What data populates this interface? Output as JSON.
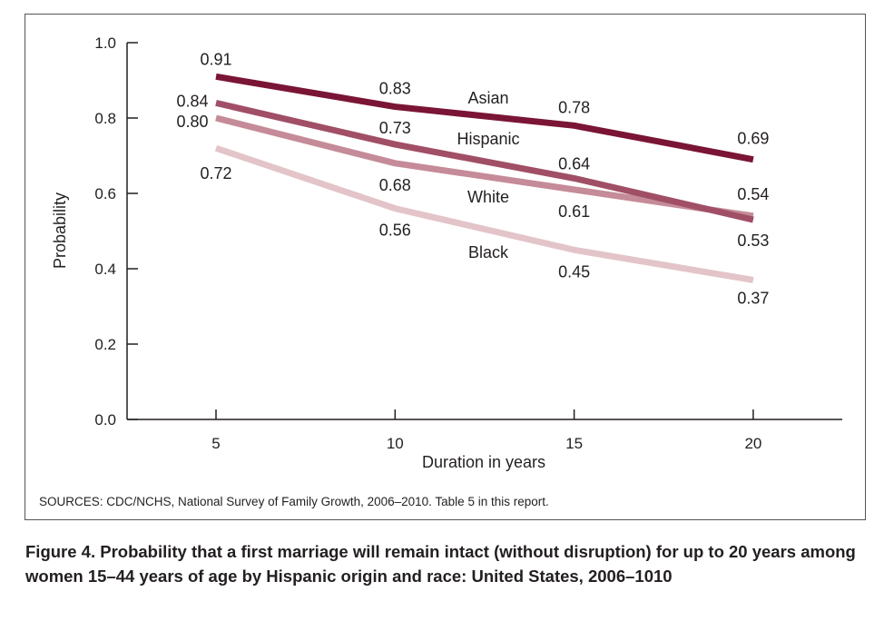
{
  "chart_data": {
    "type": "line",
    "xlabel": "Duration in years",
    "ylabel": "Probability",
    "x": [
      5,
      10,
      15,
      20
    ],
    "ylim": [
      0.0,
      1.0
    ],
    "yticks": [
      "0.0",
      "0.2",
      "0.4",
      "0.6",
      "0.8",
      "1.0"
    ],
    "xticks": [
      "5",
      "10",
      "15",
      "20"
    ],
    "grid": false,
    "series": [
      {
        "name": "Asian",
        "values": [
          0.91,
          0.83,
          0.78,
          0.69
        ],
        "labels": [
          "0.91",
          "0.83",
          "0.78",
          "0.69"
        ],
        "color": "#7a1535"
      },
      {
        "name": "Hispanic",
        "values": [
          0.84,
          0.73,
          0.64,
          0.53
        ],
        "labels": [
          "0.84",
          "0.73",
          "0.64",
          "0.53"
        ],
        "color": "#a04f66"
      },
      {
        "name": "White",
        "values": [
          0.8,
          0.68,
          0.61,
          0.54
        ],
        "labels": [
          "0.80",
          "0.68",
          "0.61",
          "0.54"
        ],
        "color": "#c58b98"
      },
      {
        "name": "Black",
        "values": [
          0.72,
          0.56,
          0.45,
          0.37
        ],
        "labels": [
          "0.72",
          "0.56",
          "0.45",
          "0.37"
        ],
        "color": "#e3c4c9"
      }
    ]
  },
  "source_note": "SOURCES: CDC/NCHS, National Survey of Family Growth, 2006–2010. Table 5 in this report.",
  "caption": "Figure 4. Probability that a first marriage will remain intact (without disruption) for up to 20 years among women 15–44 years of age by Hispanic origin and race: United States, 2006–1010"
}
